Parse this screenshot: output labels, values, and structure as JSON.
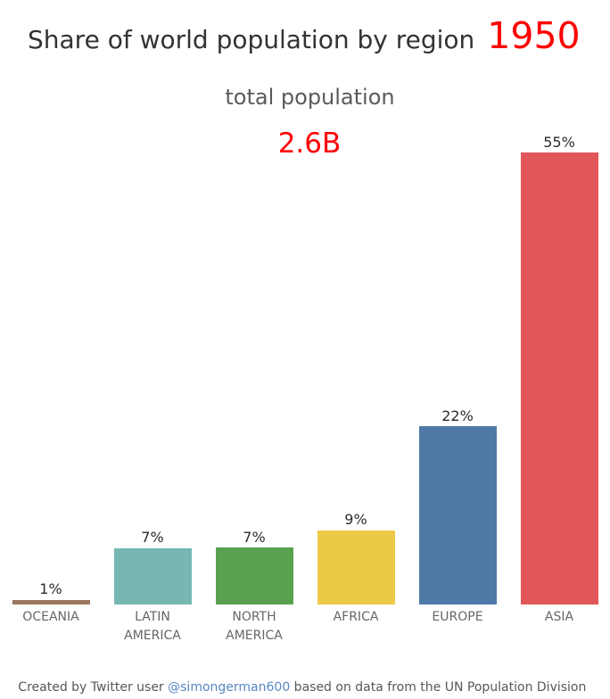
{
  "header": {
    "title": "Share of world population by region",
    "year": "1950",
    "title_color": "#333333",
    "year_color": "#ff0000"
  },
  "subtitle": {
    "label": "total population",
    "value": "2.6B",
    "value_color": "#ff0000"
  },
  "chart_data": {
    "type": "bar",
    "title": "Share of world population by region 1950",
    "categories": [
      "OCEANIA",
      "LATIN AMERICA",
      "NORTH AMERICA",
      "AFRICA",
      "EUROPE",
      "ASIA"
    ],
    "values": [
      1,
      7,
      7,
      9,
      22,
      55
    ],
    "value_labels": [
      "1%",
      "7%",
      "7%",
      "9%",
      "22%",
      "55%"
    ],
    "values_exact": [
      0.5,
      6.85,
      6.9,
      9.0,
      21.7,
      55.2
    ],
    "bar_colors": [
      "#9c755f",
      "#76b7b2",
      "#59a14f",
      "#edc948",
      "#4e79a7",
      "#e15759"
    ],
    "xlabel": "",
    "ylabel": "",
    "grid": false,
    "legend": false
  },
  "footer": {
    "prefix": "Created by Twitter user ",
    "link": "@simongerman600",
    "suffix": " based on data from the UN Population Division",
    "link_color": "#5887c3"
  }
}
